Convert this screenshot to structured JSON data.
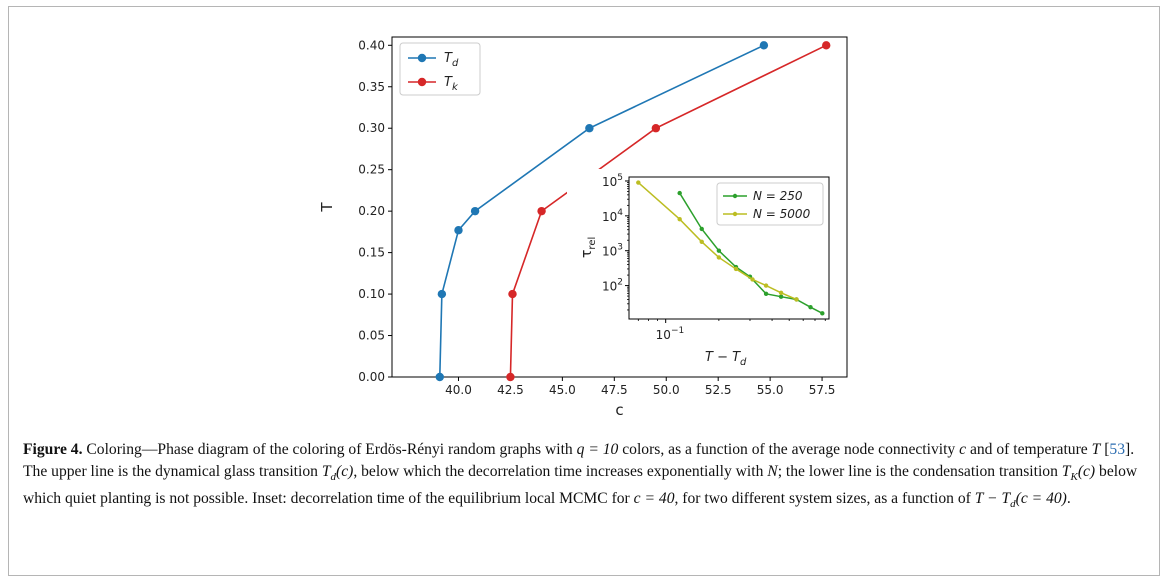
{
  "chart_data": [
    {
      "type": "line",
      "xlabel": "c",
      "ylabel": "T",
      "xlim": [
        36.8,
        58.7
      ],
      "ylim": [
        0.0,
        0.41
      ],
      "xticks": [
        40.0,
        42.5,
        45.0,
        47.5,
        50.0,
        52.5,
        55.0,
        57.5
      ],
      "xtick_labels": [
        "40.0",
        "42.5",
        "45.0",
        "47.5",
        "50.0",
        "52.5",
        "55.0",
        "57.5"
      ],
      "yticks": [
        0.0,
        0.05,
        0.1,
        0.15,
        0.2,
        0.25,
        0.3,
        0.35,
        0.4
      ],
      "ytick_labels": [
        "0.00",
        "0.05",
        "0.10",
        "0.15",
        "0.20",
        "0.25",
        "0.30",
        "0.35",
        "0.40"
      ],
      "legend_placement": "top-left",
      "series": [
        {
          "name": "T_d",
          "legend_main": "T",
          "legend_sub": "d",
          "color": "#1f77b4",
          "x": [
            39.1,
            39.2,
            40.0,
            40.8,
            46.3,
            54.7
          ],
          "y": [
            0.0,
            0.1,
            0.177,
            0.2,
            0.3,
            0.4
          ]
        },
        {
          "name": "T_k",
          "legend_main": "T",
          "legend_sub": "k",
          "color": "#d62728",
          "x": [
            42.5,
            42.6,
            44.0,
            49.5,
            57.7
          ],
          "y": [
            0.0,
            0.1,
            0.2,
            0.3,
            0.4
          ]
        }
      ]
    },
    {
      "type": "line",
      "scale": "log-log",
      "xlabel_main": "T − T",
      "xlabel_sub": "d",
      "ylabel_main": "τ",
      "ylabel_sub": "rel",
      "xlim": [
        0.062,
        0.84
      ],
      "ylim": [
        11,
        130000
      ],
      "xticks": [
        0.1
      ],
      "xtick_labels_base": [
        "10"
      ],
      "xtick_labels_exp": [
        "−1"
      ],
      "yticks": [
        100,
        1000,
        10000,
        100000
      ],
      "ytick_labels_base": [
        "10",
        "10",
        "10",
        "10"
      ],
      "ytick_labels_exp": [
        "2",
        "3",
        "4",
        "5"
      ],
      "legend_placement": "top-right",
      "series": [
        {
          "name": "N = 250",
          "color": "#2ca02c",
          "x": [
            0.12,
            0.16,
            0.2,
            0.25,
            0.3,
            0.37,
            0.45,
            0.55,
            0.66,
            0.77
          ],
          "y": [
            45000,
            4200,
            1000,
            340,
            180,
            58,
            48,
            40,
            24,
            16
          ]
        },
        {
          "name": "N = 5000",
          "color": "#bcbd22",
          "x": [
            0.07,
            0.12,
            0.16,
            0.2,
            0.25,
            0.31,
            0.37,
            0.45,
            0.55
          ],
          "y": [
            90000,
            8000,
            1800,
            640,
            300,
            150,
            100,
            62,
            40
          ]
        }
      ]
    }
  ],
  "caption": {
    "label": "Figure 4.",
    "p1": " Coloring—Phase diagram of the coloring of Erdös-Rényi random graphs with ",
    "q_eq": "q = 10",
    "p2": " colors, as a function of the average node connectivity ",
    "c": "c",
    "p3": " and of temperature ",
    "T": "T",
    "p4": " [",
    "cite": "53",
    "p5": "]. The upper line is the dynamical glass transition ",
    "Td_main": "T",
    "Td_sub": "d",
    "Td_arg": "(c)",
    "p6": ", below which the decorrelation time increases exponentially with ",
    "N": "N",
    "p7": "; the lower line is the condensation transition ",
    "TK_main": "T",
    "TK_sub": "K",
    "TK_arg": "(c)",
    "p8": " below which quiet planting is not possible. Inset: decorrelation time of the equilibrium local MCMC for ",
    "c_eq": "c = 40",
    "p9": ", for two different system sizes, as a function of ",
    "T_minus": "T − T",
    "T_minus_sub": "d",
    "T_minus_arg": "(c = 40)",
    "p10": "."
  }
}
